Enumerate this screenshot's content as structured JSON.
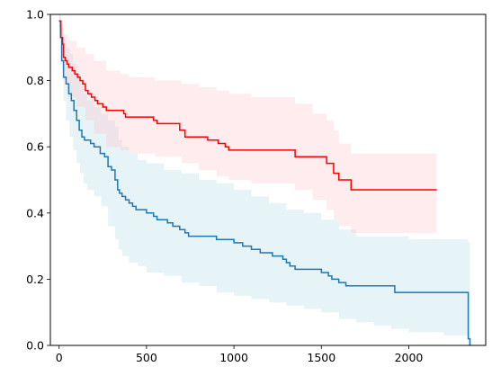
{
  "chart_data": {
    "type": "line",
    "title": "",
    "xlabel": "",
    "ylabel": "",
    "xlim": [
      -50,
      2440
    ],
    "ylim": [
      0,
      1.0
    ],
    "xticks": [
      0,
      500,
      1000,
      1500,
      2000
    ],
    "yticks": [
      0.0,
      0.2,
      0.4,
      0.6,
      0.8,
      1.0
    ],
    "xtick_labels": [
      "0",
      "500",
      "1000",
      "1500",
      "2000"
    ],
    "ytick_labels": [
      "0.0",
      "0.2",
      "0.4",
      "0.6",
      "0.8",
      "1.0"
    ],
    "grid": false,
    "legend": "none",
    "series": [
      {
        "color": "#1f77b4",
        "band_color": "#add8e6",
        "steps": [
          [
            0,
            0.98
          ],
          [
            8,
            0.93
          ],
          [
            15,
            0.86
          ],
          [
            25,
            0.81
          ],
          [
            40,
            0.79
          ],
          [
            55,
            0.76
          ],
          [
            70,
            0.74
          ],
          [
            85,
            0.71
          ],
          [
            100,
            0.68
          ],
          [
            115,
            0.65
          ],
          [
            130,
            0.63
          ],
          [
            145,
            0.62
          ],
          [
            180,
            0.61
          ],
          [
            200,
            0.6
          ],
          [
            235,
            0.58
          ],
          [
            260,
            0.57
          ],
          [
            280,
            0.54
          ],
          [
            300,
            0.53
          ],
          [
            320,
            0.5
          ],
          [
            335,
            0.47
          ],
          [
            345,
            0.46
          ],
          [
            360,
            0.45
          ],
          [
            380,
            0.44
          ],
          [
            400,
            0.43
          ],
          [
            420,
            0.42
          ],
          [
            440,
            0.41
          ],
          [
            500,
            0.4
          ],
          [
            540,
            0.39
          ],
          [
            560,
            0.38
          ],
          [
            620,
            0.37
          ],
          [
            650,
            0.36
          ],
          [
            690,
            0.35
          ],
          [
            720,
            0.34
          ],
          [
            740,
            0.33
          ],
          [
            900,
            0.32
          ],
          [
            1000,
            0.31
          ],
          [
            1050,
            0.3
          ],
          [
            1100,
            0.29
          ],
          [
            1150,
            0.28
          ],
          [
            1220,
            0.27
          ],
          [
            1280,
            0.26
          ],
          [
            1300,
            0.25
          ],
          [
            1320,
            0.24
          ],
          [
            1350,
            0.23
          ],
          [
            1500,
            0.22
          ],
          [
            1540,
            0.21
          ],
          [
            1560,
            0.2
          ],
          [
            1600,
            0.19
          ],
          [
            1640,
            0.18
          ],
          [
            1920,
            0.16
          ],
          [
            2340,
            0.02
          ],
          [
            2350,
            0.0
          ]
        ],
        "band": [
          [
            0,
            1.0,
            0.96
          ],
          [
            10,
            0.96,
            0.85
          ],
          [
            25,
            0.92,
            0.74
          ],
          [
            40,
            0.9,
            0.68
          ],
          [
            60,
            0.88,
            0.63
          ],
          [
            80,
            0.85,
            0.59
          ],
          [
            100,
            0.82,
            0.55
          ],
          [
            120,
            0.79,
            0.52
          ],
          [
            140,
            0.76,
            0.49
          ],
          [
            160,
            0.74,
            0.47
          ],
          [
            200,
            0.72,
            0.45
          ],
          [
            240,
            0.7,
            0.42
          ],
          [
            280,
            0.68,
            0.36
          ],
          [
            320,
            0.66,
            0.32
          ],
          [
            340,
            0.62,
            0.29
          ],
          [
            360,
            0.6,
            0.27
          ],
          [
            400,
            0.58,
            0.25
          ],
          [
            450,
            0.56,
            0.24
          ],
          [
            500,
            0.55,
            0.22
          ],
          [
            600,
            0.53,
            0.21
          ],
          [
            700,
            0.52,
            0.19
          ],
          [
            800,
            0.5,
            0.18
          ],
          [
            900,
            0.49,
            0.16
          ],
          [
            1000,
            0.47,
            0.15
          ],
          [
            1100,
            0.45,
            0.14
          ],
          [
            1200,
            0.43,
            0.13
          ],
          [
            1300,
            0.41,
            0.12
          ],
          [
            1400,
            0.4,
            0.11
          ],
          [
            1500,
            0.38,
            0.1
          ],
          [
            1600,
            0.35,
            0.08
          ],
          [
            1700,
            0.33,
            0.07
          ],
          [
            1800,
            0.33,
            0.06
          ],
          [
            1900,
            0.33,
            0.05
          ],
          [
            2000,
            0.32,
            0.04
          ],
          [
            2200,
            0.32,
            0.03
          ],
          [
            2340,
            0.31,
            0.0
          ],
          [
            2350,
            0.31,
            0.0
          ]
        ]
      },
      {
        "color": "#ff0000",
        "band_color": "#ffc0cb",
        "steps": [
          [
            0,
            0.98
          ],
          [
            10,
            0.93
          ],
          [
            20,
            0.91
          ],
          [
            25,
            0.87
          ],
          [
            35,
            0.86
          ],
          [
            45,
            0.85
          ],
          [
            55,
            0.84
          ],
          [
            75,
            0.83
          ],
          [
            90,
            0.82
          ],
          [
            105,
            0.81
          ],
          [
            120,
            0.8
          ],
          [
            135,
            0.79
          ],
          [
            150,
            0.77
          ],
          [
            165,
            0.76
          ],
          [
            185,
            0.75
          ],
          [
            205,
            0.74
          ],
          [
            220,
            0.73
          ],
          [
            250,
            0.72
          ],
          [
            270,
            0.71
          ],
          [
            370,
            0.7
          ],
          [
            380,
            0.69
          ],
          [
            540,
            0.68
          ],
          [
            560,
            0.67
          ],
          [
            690,
            0.65
          ],
          [
            720,
            0.63
          ],
          [
            850,
            0.62
          ],
          [
            910,
            0.61
          ],
          [
            950,
            0.6
          ],
          [
            970,
            0.59
          ],
          [
            1350,
            0.57
          ],
          [
            1530,
            0.55
          ],
          [
            1570,
            0.52
          ],
          [
            1600,
            0.5
          ],
          [
            1670,
            0.47
          ],
          [
            2160,
            0.47
          ]
        ],
        "band": [
          [
            0,
            1.0,
            0.96
          ],
          [
            10,
            0.97,
            0.87
          ],
          [
            25,
            0.94,
            0.8
          ],
          [
            50,
            0.92,
            0.75
          ],
          [
            100,
            0.9,
            0.72
          ],
          [
            150,
            0.88,
            0.68
          ],
          [
            200,
            0.86,
            0.64
          ],
          [
            270,
            0.83,
            0.6
          ],
          [
            350,
            0.82,
            0.59
          ],
          [
            400,
            0.81,
            0.58
          ],
          [
            550,
            0.8,
            0.57
          ],
          [
            700,
            0.79,
            0.55
          ],
          [
            800,
            0.78,
            0.53
          ],
          [
            900,
            0.77,
            0.51
          ],
          [
            970,
            0.76,
            0.5
          ],
          [
            1100,
            0.75,
            0.49
          ],
          [
            1350,
            0.73,
            0.47
          ],
          [
            1450,
            0.7,
            0.44
          ],
          [
            1530,
            0.68,
            0.41
          ],
          [
            1570,
            0.65,
            0.38
          ],
          [
            1600,
            0.61,
            0.36
          ],
          [
            1670,
            0.58,
            0.34
          ],
          [
            2160,
            0.58,
            0.34
          ]
        ]
      }
    ]
  }
}
